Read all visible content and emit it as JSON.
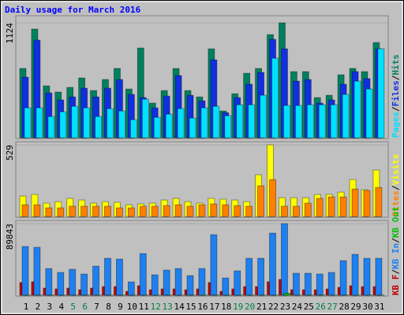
{
  "chart_data": [
    {
      "type": "bar",
      "title": "Daily usage for March 2016",
      "bar_order": "reverse",
      "legend_separator": "/",
      "ylim": [
        0,
        1124
      ],
      "yticks": [
        1124
      ],
      "series": [
        {
          "name": "Pages",
          "color": "#00e0ff",
          "values": [
            293,
            293,
            208,
            254,
            308,
            293,
            208,
            285,
            262,
            177,
            377,
            200,
            231,
            285,
            193,
            293,
            308,
            216,
            323,
            323,
            416,
            778,
            316,
            316,
            323,
            323,
            323,
            424,
            554,
            477,
            870
          ]
        },
        {
          "name": "Files",
          "color": "#1030e0",
          "values": [
            593,
            955,
            439,
            370,
            400,
            485,
            400,
            485,
            570,
            424,
            393,
            293,
            408,
            608,
            416,
            362,
            762,
            246,
            393,
            524,
            639,
            963,
            870,
            554,
            570,
            339,
            370,
            524,
            647,
            578,
            870
          ]
        },
        {
          "name": "Hits",
          "color": "#008060",
          "values": [
            678,
            1063,
            508,
            447,
            493,
            585,
            462,
            570,
            678,
            477,
            878,
            339,
            462,
            678,
            462,
            400,
            870,
            262,
            431,
            631,
            678,
            1009,
            1124,
            647,
            647,
            393,
            416,
            616,
            678,
            647,
            932
          ]
        }
      ]
    },
    {
      "type": "bar",
      "bar_order": "reverse",
      "legend_separator": "/",
      "ylim": [
        0,
        529
      ],
      "yticks": [
        529
      ],
      "series": [
        {
          "name": "Sites",
          "color": "#ff8000",
          "values": [
            87,
            87,
            64,
            64,
            76,
            76,
            76,
            76,
            64,
            64,
            76,
            76,
            81,
            87,
            76,
            87,
            93,
            87,
            81,
            76,
            227,
            273,
            76,
            76,
            99,
            134,
            145,
            145,
            203,
            192,
            215
          ]
        },
        {
          "name": "Visits",
          "color": "#ffff00",
          "values": [
            151,
            163,
            99,
            110,
            134,
            122,
            99,
            110,
            105,
            87,
            93,
            99,
            122,
            134,
            110,
            99,
            134,
            128,
            122,
            110,
            308,
            529,
            139,
            139,
            139,
            163,
            163,
            180,
            273,
            198,
            343
          ]
        }
      ]
    },
    {
      "type": "bar",
      "bar_order": "forward",
      "legend_separator": "/",
      "ylim": [
        0,
        89843
      ],
      "yticks": [
        89843
      ],
      "categories": [
        "1",
        "2",
        "3",
        "4",
        "5",
        "6",
        "7",
        "8",
        "9",
        "10",
        "11",
        "12",
        "13",
        "14",
        "15",
        "16",
        "17",
        "18",
        "19",
        "20",
        "21",
        "22",
        "23",
        "24",
        "25",
        "26",
        "27",
        "28",
        "29",
        "30",
        "31"
      ],
      "label_colors": [
        "#000",
        "#000",
        "#000",
        "#000",
        "#008040",
        "#008040",
        "#000",
        "#000",
        "#000",
        "#000",
        "#000",
        "#008040",
        "#008040",
        "#000",
        "#000",
        "#000",
        "#000",
        "#000",
        "#008040",
        "#008040",
        "#000",
        "#000",
        "#000",
        "#000",
        "#000",
        "#008040",
        "#008040",
        "#000",
        "#000",
        "#000",
        "#000"
      ],
      "series": [
        {
          "name": "KB F",
          "color": "#c00000",
          "values": [
            16000,
            17000,
            9000,
            8000,
            9000,
            7000,
            9000,
            11000,
            11000,
            5000,
            12000,
            7000,
            8000,
            8000,
            7000,
            8000,
            16000,
            5000,
            8000,
            11000,
            11000,
            17000,
            20000,
            7000,
            7000,
            7000,
            8000,
            10000,
            12000,
            11000,
            11000
          ]
        },
        {
          "name": "KB In",
          "color": "#1e80f0",
          "values": [
            61194,
            60207,
            33558,
            28623,
            32571,
            26649,
            36519,
            46389,
            45402,
            16779,
            52311,
            25662,
            31584,
            33558,
            24675,
            33558,
            75999,
            21714,
            30597,
            46389,
            46389,
            77973,
            89843,
            27636,
            27636,
            26649,
            28623,
            43428,
            51324,
            46389,
            46389
          ]
        },
        {
          "name": "KB Out",
          "color": "#00c000",
          "values": [
            300,
            300,
            300,
            300,
            300,
            300,
            300,
            300,
            300,
            300,
            300,
            300,
            300,
            300,
            300,
            300,
            300,
            300,
            300,
            300,
            300,
            300,
            2500,
            300,
            300,
            300,
            300,
            300,
            300,
            300,
            300
          ]
        }
      ]
    }
  ]
}
